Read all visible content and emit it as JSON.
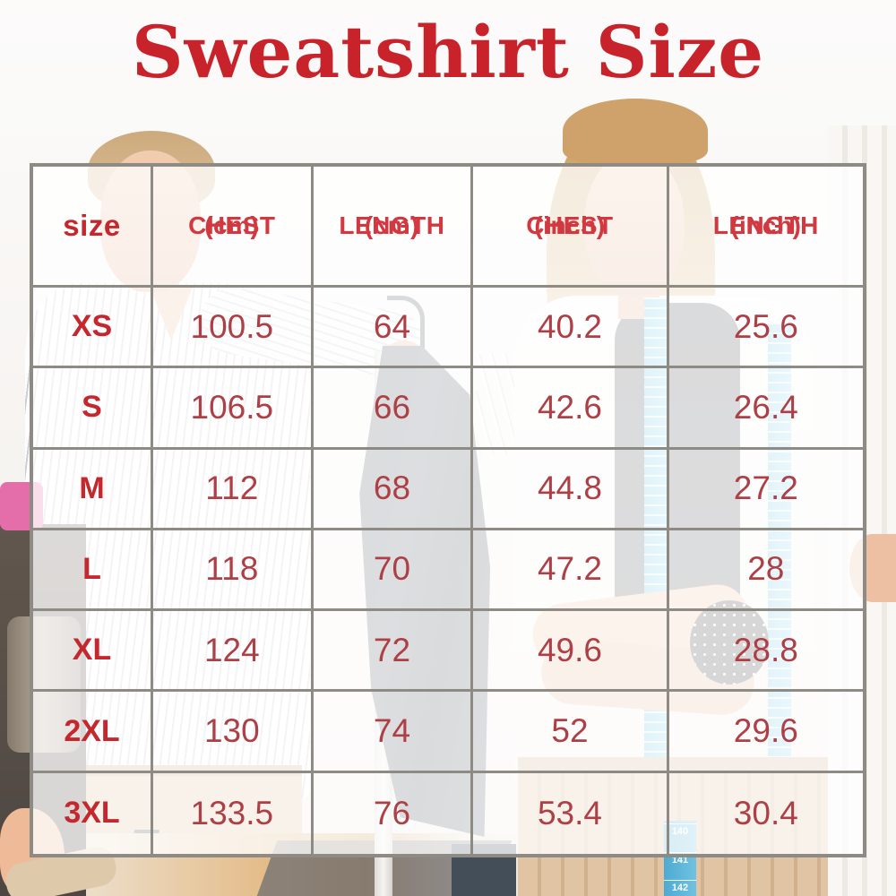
{
  "title": "Sweatshirt Size",
  "chart_data": {
    "type": "table",
    "title": "Sweatshirt Size",
    "columns": [
      "size",
      "CHEST (cm)",
      "LENGTH (cm)",
      "CHEST (inch)",
      "LENGTH (inch)"
    ],
    "header": [
      {
        "label": "size",
        "sublabel": ""
      },
      {
        "label": "CHEST",
        "sublabel": "(cm)"
      },
      {
        "label": "LENGTH",
        "sublabel": "(cm)"
      },
      {
        "label": "CHEST",
        "sublabel": "(inch)"
      },
      {
        "label": "LENGTH",
        "sublabel": "(inch)"
      }
    ],
    "rows": [
      {
        "size": "XS",
        "chest_cm": "100.5",
        "length_cm": "64",
        "chest_inch": "40.2",
        "length_inch": "25.6"
      },
      {
        "size": "S",
        "chest_cm": "106.5",
        "length_cm": "66",
        "chest_inch": "42.6",
        "length_inch": "26.4"
      },
      {
        "size": "M",
        "chest_cm": "112",
        "length_cm": "68",
        "chest_inch": "44.8",
        "length_inch": "27.2"
      },
      {
        "size": "L",
        "chest_cm": "118",
        "length_cm": "70",
        "chest_inch": "47.2",
        "length_inch": "28"
      },
      {
        "size": "XL",
        "chest_cm": "124",
        "length_cm": "72",
        "chest_inch": "49.6",
        "length_inch": "28.8"
      },
      {
        "size": "2XL",
        "chest_cm": "130",
        "length_cm": "74",
        "chest_inch": "52",
        "length_inch": "29.6"
      },
      {
        "size": "3XL",
        "chest_cm": "133.5",
        "length_cm": "76",
        "chest_inch": "53.4",
        "length_inch": "30.4"
      }
    ]
  },
  "photo": {
    "tape_numbers": [
      "140",
      "141",
      "142"
    ]
  },
  "colors": {
    "title_red": "#c8232b",
    "header_red": "#d23840",
    "label_red": "#c4282e",
    "value_red": "#ad4046",
    "grid_gray": "#8e8a84",
    "tape_blue": "#6cc6e7"
  }
}
